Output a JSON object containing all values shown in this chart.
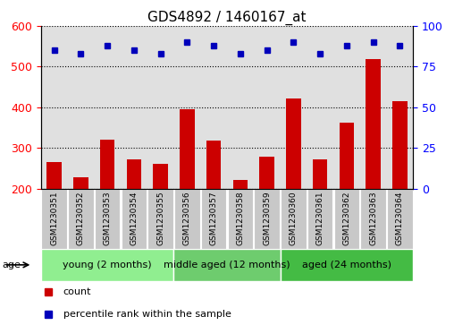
{
  "title": "GDS4892 / 1460167_at",
  "samples": [
    "GSM1230351",
    "GSM1230352",
    "GSM1230353",
    "GSM1230354",
    "GSM1230355",
    "GSM1230356",
    "GSM1230357",
    "GSM1230358",
    "GSM1230359",
    "GSM1230360",
    "GSM1230361",
    "GSM1230362",
    "GSM1230363",
    "GSM1230364"
  ],
  "counts": [
    265,
    228,
    320,
    272,
    260,
    395,
    318,
    222,
    278,
    422,
    272,
    362,
    518,
    415
  ],
  "percentiles": [
    85,
    83,
    88,
    85,
    83,
    90,
    88,
    83,
    85,
    90,
    83,
    88,
    90,
    88
  ],
  "groups": [
    {
      "label": "young (2 months)",
      "start": 0,
      "end": 5
    },
    {
      "label": "middle aged (12 months)",
      "start": 5,
      "end": 9
    },
    {
      "label": "aged (24 months)",
      "start": 9,
      "end": 14
    }
  ],
  "group_colors": [
    "#90EE90",
    "#6ECC6E",
    "#44BB44"
  ],
  "ylim_left": [
    200,
    600
  ],
  "ylim_right": [
    0,
    100
  ],
  "yticks_left": [
    200,
    300,
    400,
    500,
    600
  ],
  "yticks_right": [
    0,
    25,
    50,
    75,
    100
  ],
  "bar_color": "#CC0000",
  "dot_color": "#0000BB",
  "bar_bottom": 200,
  "background_plot": "#E0E0E0",
  "title_fontsize": 11,
  "sample_fontsize": 6.5,
  "group_fontsize": 8,
  "legend_fontsize": 8,
  "axis_fontsize": 9
}
